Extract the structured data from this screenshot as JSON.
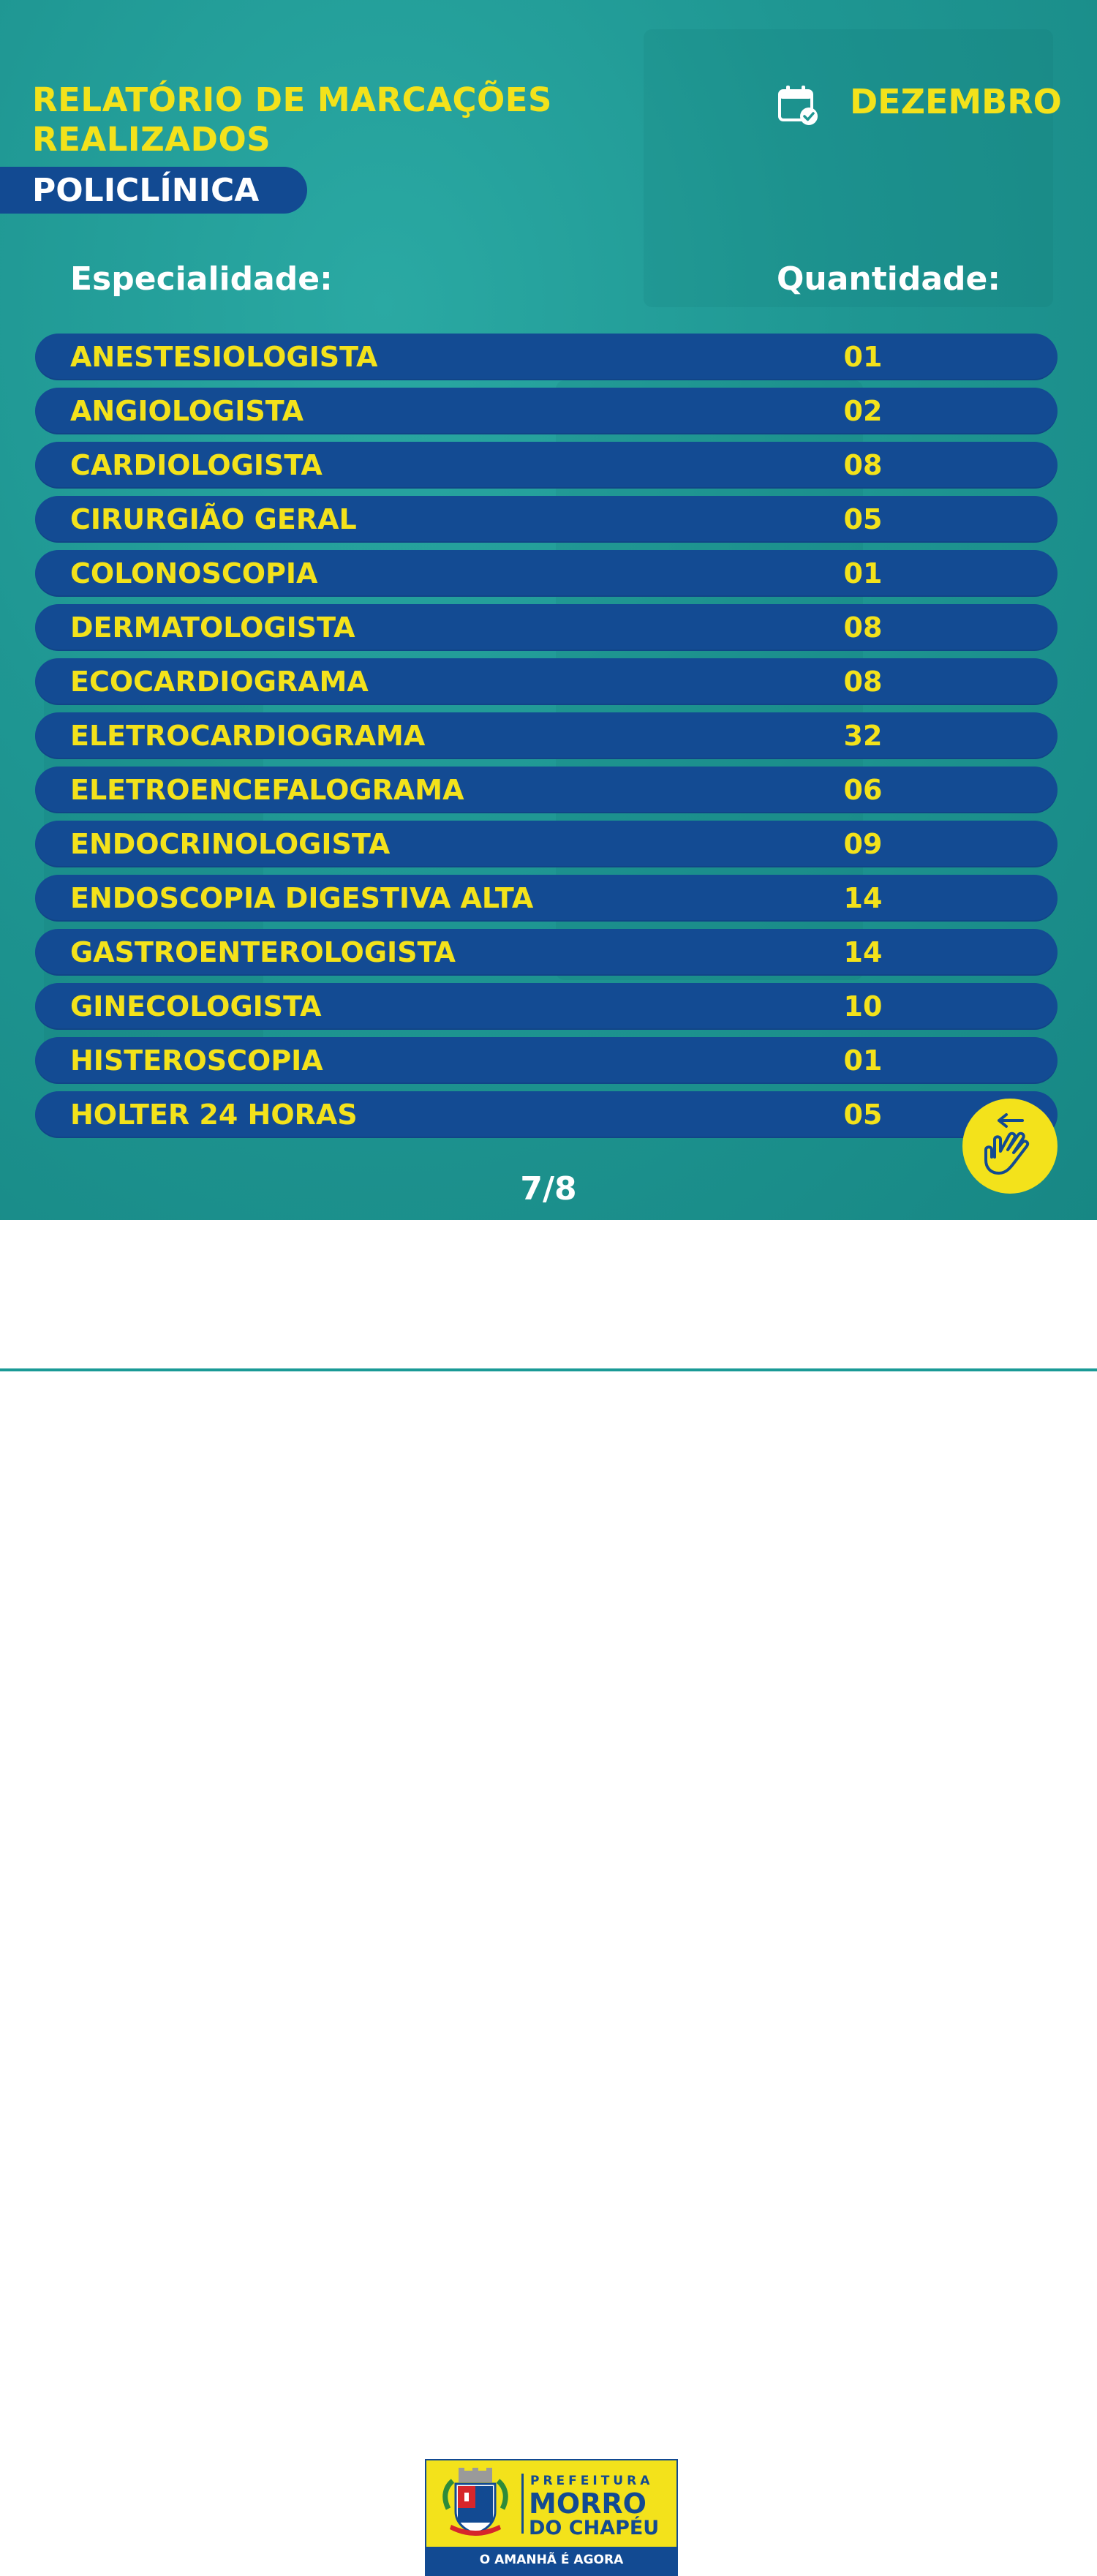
{
  "header": {
    "title_line1": "RELATÓRIO DE MARCAÇÕES",
    "title_line2": "REALIZADOS",
    "unit": "POLICLÍNICA",
    "month": "DEZEMBRO"
  },
  "table": {
    "col_specialty": "Especialidade:",
    "col_quantity": "Quantidade:",
    "rows": [
      {
        "specialty": "ANESTESIOLOGISTA",
        "quantity": "01"
      },
      {
        "specialty": "ANGIOLOGISTA",
        "quantity": "02"
      },
      {
        "specialty": "CARDIOLOGISTA",
        "quantity": "08"
      },
      {
        "specialty": "CIRURGIÃO GERAL",
        "quantity": "05"
      },
      {
        "specialty": "COLONOSCOPIA",
        "quantity": "01"
      },
      {
        "specialty": "DERMATOLOGISTA",
        "quantity": "08"
      },
      {
        "specialty": "ECOCARDIOGRAMA",
        "quantity": "08"
      },
      {
        "specialty": "ELETROCARDIOGRAMA",
        "quantity": "32"
      },
      {
        "specialty": "ELETROENCEFALOGRAMA",
        "quantity": "06"
      },
      {
        "specialty": "ENDOCRINOLOGISTA",
        "quantity": "09"
      },
      {
        "specialty": "ENDOSCOPIA DIGESTIVA ALTA",
        "quantity": "14"
      },
      {
        "specialty": "GASTROENTEROLOGISTA",
        "quantity": "14"
      },
      {
        "specialty": "GINECOLOGISTA",
        "quantity": "10"
      },
      {
        "specialty": "HISTEROSCOPIA",
        "quantity": "01"
      },
      {
        "specialty": "HOLTER 24 HORAS",
        "quantity": "05"
      }
    ]
  },
  "pagination": {
    "label": "7/8"
  },
  "icons": {
    "calendar": "calendar-check-icon",
    "swipe": "swipe-hand-icon"
  },
  "footer": {
    "logo_small": "PREFEITURA",
    "logo_big_1": "MORRO",
    "logo_big_2": "DO CHAPÉU",
    "slogan": "O AMANHÃ É AGORA"
  },
  "colors": {
    "accent_yellow": "#f3e21b",
    "row_blue": "#134b93",
    "background_teal": "#1f9793"
  }
}
